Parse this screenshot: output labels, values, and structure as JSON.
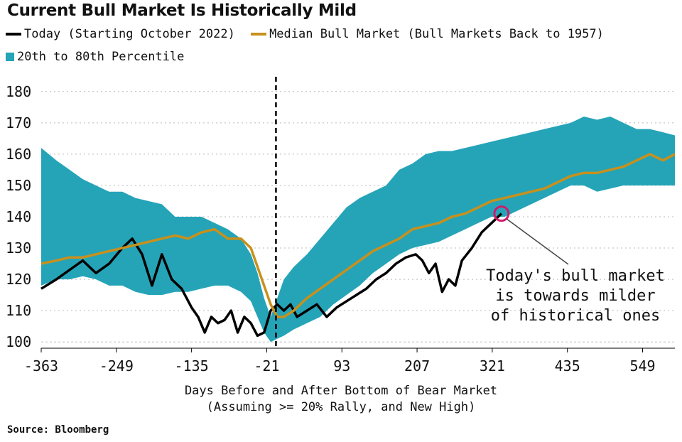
{
  "chart_data": {
    "type": "line",
    "title": "Current Bull Market Is Historically Mild",
    "series": [
      {
        "name": "Today (Starting October 2022)",
        "color": "#000000",
        "x": [
          -363,
          -340,
          -320,
          -300,
          -280,
          -260,
          -240,
          -225,
          -210,
          -195,
          -180,
          -165,
          -150,
          -135,
          -125,
          -115,
          -105,
          -95,
          -85,
          -75,
          -65,
          -55,
          -45,
          -35,
          -25,
          -15,
          -5,
          5,
          15,
          25,
          40,
          55,
          70,
          85,
          100,
          115,
          130,
          145,
          160,
          175,
          190,
          205,
          215,
          225,
          235,
          245,
          255,
          265,
          275,
          290,
          305,
          320,
          330,
          335
        ],
        "y": [
          117,
          120,
          123,
          126,
          122,
          125,
          130,
          133,
          128,
          118,
          128,
          120,
          117,
          111,
          108,
          103,
          108,
          106,
          107,
          110,
          103,
          108,
          106,
          102,
          103,
          110,
          112,
          110,
          112,
          108,
          110,
          112,
          108,
          111,
          113,
          115,
          117,
          120,
          122,
          125,
          127,
          128,
          126,
          122,
          125,
          116,
          120,
          118,
          126,
          130,
          135,
          138,
          140,
          141
        ]
      },
      {
        "name": "Median Bull Market (Bull Markets Back to 1957)",
        "color": "#c8901c",
        "x": [
          -363,
          -340,
          -320,
          -300,
          -280,
          -260,
          -240,
          -220,
          -200,
          -180,
          -160,
          -140,
          -120,
          -100,
          -80,
          -60,
          -45,
          -35,
          -25,
          -15,
          -5,
          5,
          20,
          40,
          60,
          80,
          100,
          120,
          140,
          160,
          180,
          200,
          220,
          240,
          260,
          280,
          300,
          320,
          340,
          360,
          380,
          400,
          420,
          440,
          460,
          480,
          500,
          520,
          540,
          560,
          580,
          598
        ],
        "y": [
          125,
          126,
          127,
          127,
          128,
          129,
          130,
          131,
          132,
          133,
          134,
          133,
          135,
          136,
          133,
          133,
          130,
          124,
          118,
          112,
          108,
          108,
          110,
          114,
          117,
          120,
          123,
          126,
          129,
          131,
          133,
          136,
          137,
          138,
          140,
          141,
          143,
          145,
          146,
          147,
          148,
          149,
          151,
          153,
          154,
          154,
          155,
          156,
          158,
          160,
          158,
          160
        ]
      }
    ],
    "band": {
      "name": "20th to 80th Percentile",
      "color": "#25a4b8",
      "x": [
        -363,
        -340,
        -320,
        -300,
        -280,
        -260,
        -240,
        -220,
        -200,
        -180,
        -160,
        -140,
        -120,
        -100,
        -80,
        -60,
        -45,
        -35,
        -25,
        -15,
        -5,
        5,
        20,
        40,
        60,
        80,
        100,
        120,
        140,
        160,
        180,
        200,
        220,
        240,
        260,
        280,
        300,
        320,
        340,
        360,
        380,
        400,
        420,
        440,
        460,
        480,
        500,
        520,
        540,
        560,
        580,
        598
      ],
      "low": [
        118,
        120,
        120,
        121,
        120,
        118,
        118,
        116,
        115,
        115,
        116,
        116,
        117,
        118,
        118,
        116,
        113,
        108,
        103,
        100,
        101,
        102,
        104,
        106,
        108,
        112,
        115,
        118,
        122,
        125,
        128,
        130,
        131,
        132,
        134,
        136,
        138,
        140,
        140,
        142,
        144,
        146,
        148,
        150,
        150,
        148,
        149,
        150,
        150,
        150,
        150,
        150
      ],
      "high": [
        162,
        158,
        155,
        152,
        150,
        148,
        148,
        146,
        145,
        144,
        140,
        140,
        140,
        138,
        136,
        133,
        128,
        122,
        114,
        108,
        114,
        120,
        124,
        128,
        133,
        138,
        143,
        146,
        148,
        150,
        155,
        157,
        160,
        161,
        161,
        162,
        163,
        164,
        165,
        166,
        167,
        168,
        169,
        170,
        172,
        171,
        172,
        170,
        168,
        168,
        167,
        166
      ]
    },
    "xlabel": "Days Before and After Bottom of Bear Market",
    "xlabel2": "(Assuming >= 20% Rally, and New High)",
    "x_ticks": [
      "-363",
      "-249",
      "-135",
      "-21",
      "93",
      "207",
      "321",
      "435",
      "549"
    ],
    "y_ticks": [
      "100",
      "110",
      "120",
      "130",
      "140",
      "150",
      "160",
      "170",
      "180"
    ],
    "xlim": [
      -363,
      598
    ],
    "ylim": [
      98,
      182
    ],
    "vline_x": -7,
    "annotation": [
      "Today's bull market",
      "is towards milder",
      "of historical ones"
    ],
    "marker": {
      "x": 335,
      "y": 141,
      "color": "#d01a6a"
    }
  },
  "legend": {
    "today": "Today (Starting October 2022)",
    "median": "Median Bull Market (Bull Markets Back to 1957)",
    "band": "20th to 80th Percentile"
  },
  "source": "Source: Bloomberg"
}
